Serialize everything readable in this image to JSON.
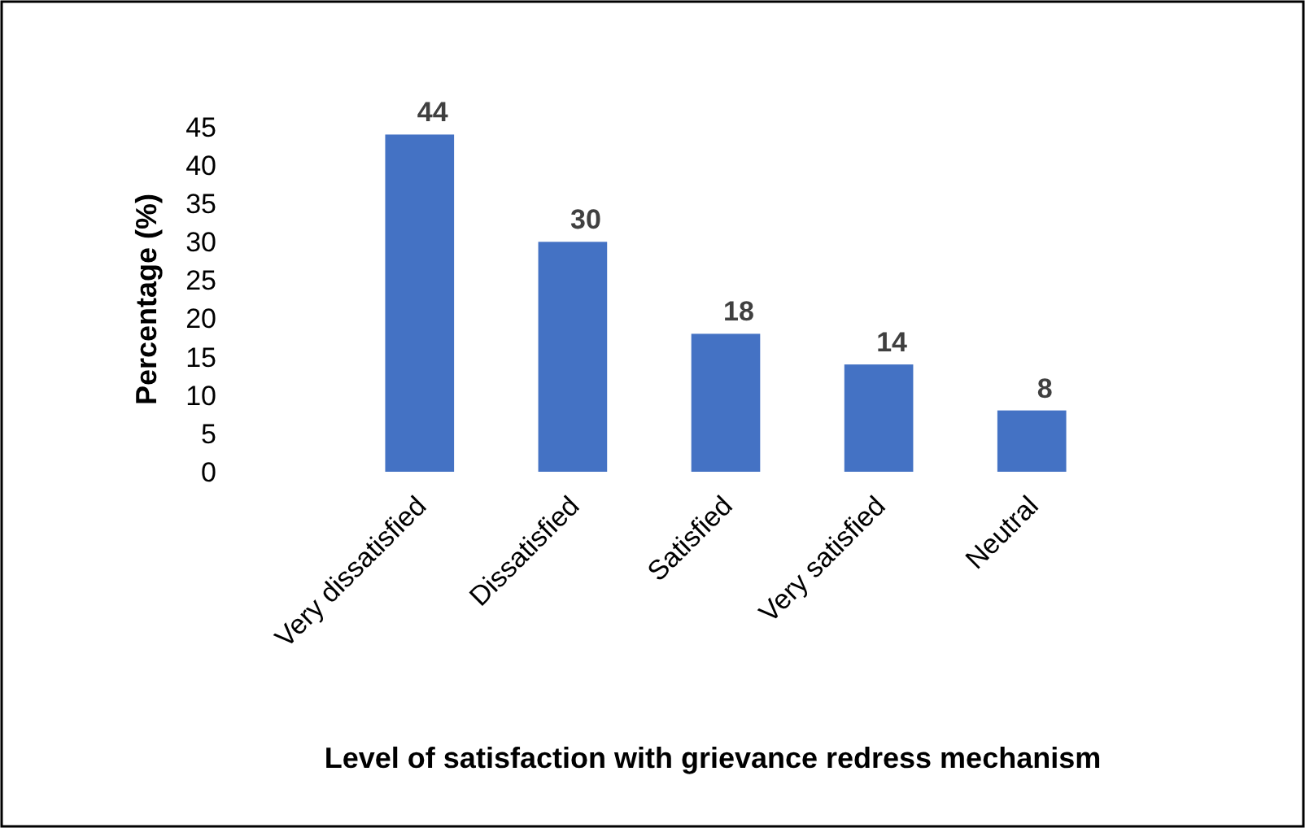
{
  "chart_data": {
    "type": "bar",
    "xlabel": "Level of satisfaction with grievance redress mechanism",
    "ylabel": "Percentage (%)",
    "categories": [
      "Very dissatisfied",
      "Dissatisfied",
      "Satisfied",
      "Very satisfied",
      "Neutral"
    ],
    "values": [
      44,
      30,
      18,
      14,
      8
    ],
    "color": "#4472c4",
    "ylim": [
      0,
      45
    ],
    "yticks": [
      0,
      5,
      10,
      15,
      20,
      25,
      30,
      35,
      40,
      45
    ],
    "grid": false,
    "data_labels": true
  }
}
